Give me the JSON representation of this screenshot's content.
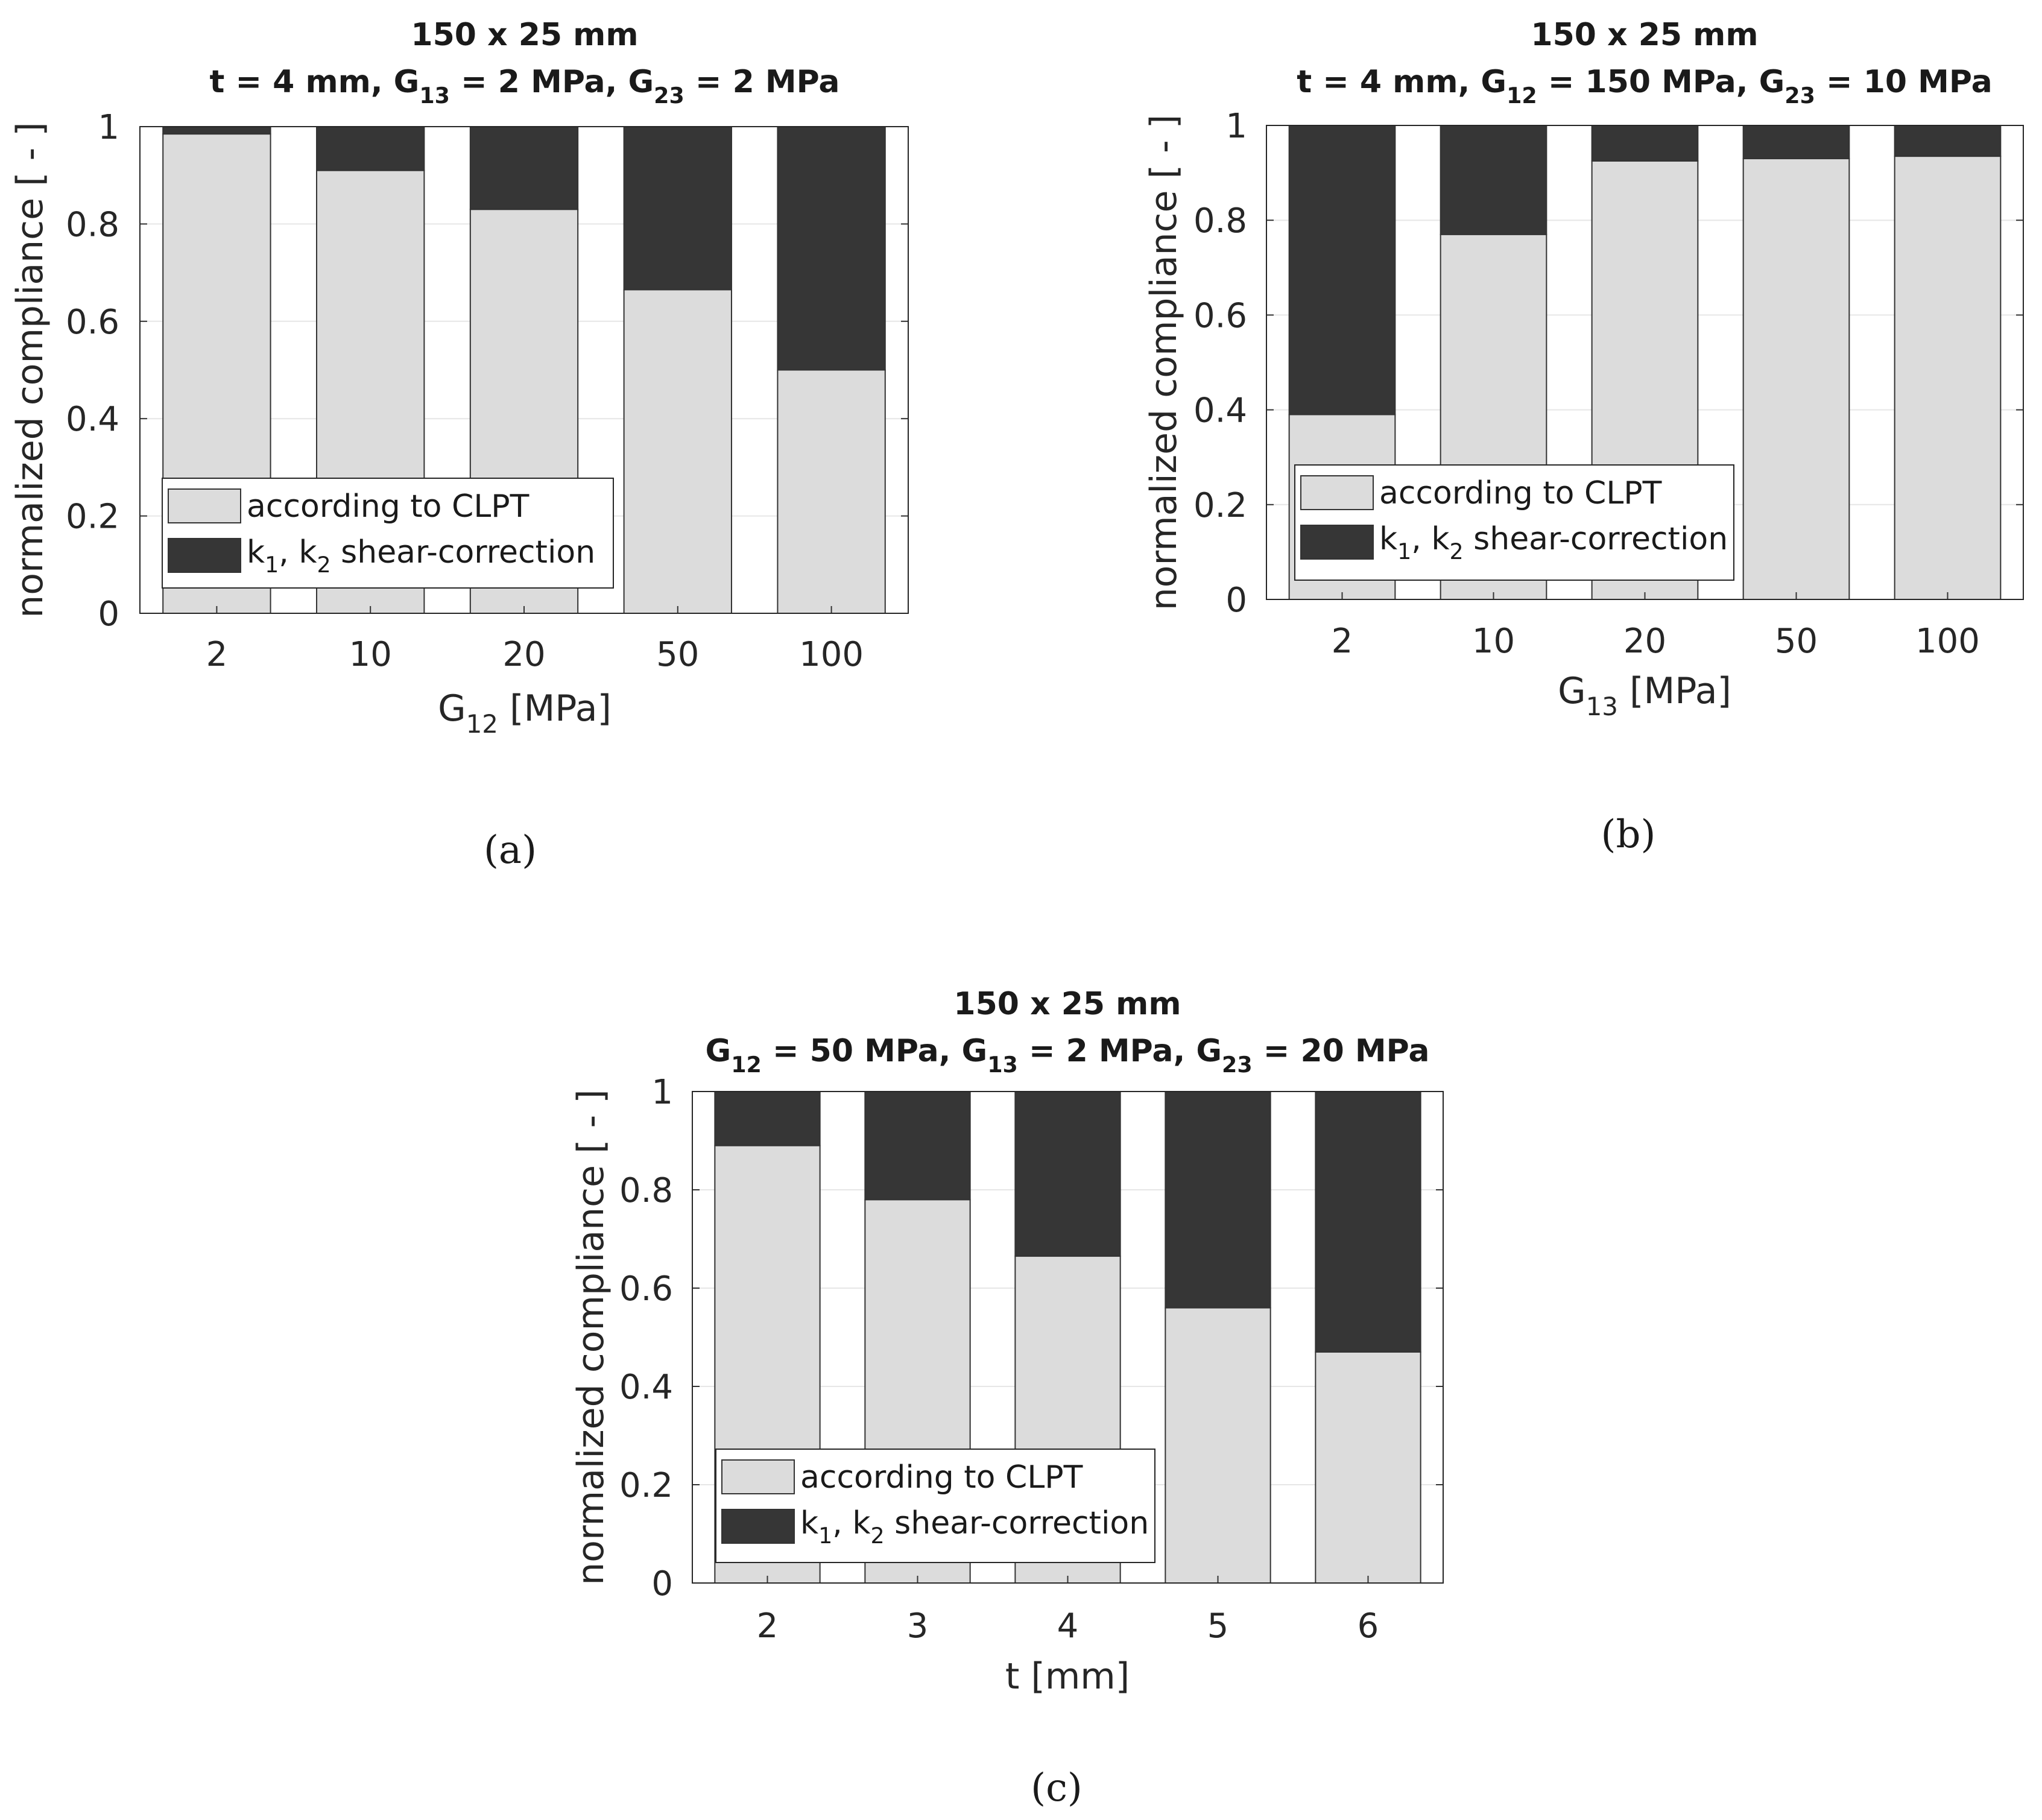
{
  "colors": {
    "clpt": "#dcdcdc",
    "shear": "#363636",
    "edge": "#333333",
    "grid": "#e6e6e6"
  },
  "chart_data": [
    {
      "type": "bar",
      "stacked": true,
      "caption": "(a)",
      "title_line1": "150 x 25 mm",
      "title_line2": [
        {
          "t": "t = 4 mm, G",
          "sub": false
        },
        {
          "t": "13",
          "sub": true
        },
        {
          "t": " = 2 MPa, G",
          "sub": false
        },
        {
          "t": "23",
          "sub": true
        },
        {
          "t": " = 2 MPa",
          "sub": false
        }
      ],
      "xlabel": [
        {
          "t": "G",
          "sub": false
        },
        {
          "t": "12",
          "sub": true
        },
        {
          "t": " [MPa]",
          "sub": false
        }
      ],
      "ylabel": "normalized compliance [ - ]",
      "categories": [
        "2",
        "10",
        "20",
        "50",
        "100"
      ],
      "series": [
        {
          "name": "according to CLPT",
          "values": [
            0.985,
            0.91,
            0.83,
            0.665,
            0.5
          ]
        },
        {
          "name": "k1, k2 shear-correction",
          "values": [
            0.015,
            0.09,
            0.17,
            0.335,
            0.5
          ]
        }
      ],
      "ylim": [
        0,
        1
      ],
      "yticks": [
        "0",
        "0.2",
        "0.4",
        "0.6",
        "0.8",
        "1"
      ],
      "legend_position": "bottom-left"
    },
    {
      "type": "bar",
      "stacked": true,
      "caption": "(b)",
      "title_line1": "150 x 25 mm",
      "title_line2": [
        {
          "t": "t = 4 mm, G",
          "sub": false
        },
        {
          "t": "12",
          "sub": true
        },
        {
          "t": " = 150 MPa, G",
          "sub": false
        },
        {
          "t": "23",
          "sub": true
        },
        {
          "t": " = 10 MPa",
          "sub": false
        }
      ],
      "xlabel": [
        {
          "t": "G",
          "sub": false
        },
        {
          "t": "13",
          "sub": true
        },
        {
          "t": " [MPa]",
          "sub": false
        }
      ],
      "ylabel": "normalized compliance [ - ]",
      "categories": [
        "2",
        "10",
        "20",
        "50",
        "100"
      ],
      "series": [
        {
          "name": "according to CLPT",
          "values": [
            0.39,
            0.77,
            0.925,
            0.93,
            0.935
          ]
        },
        {
          "name": "k1, k2 shear-correction",
          "values": [
            0.61,
            0.23,
            0.075,
            0.07,
            0.065
          ]
        }
      ],
      "ylim": [
        0,
        1
      ],
      "yticks": [
        "0",
        "0.2",
        "0.4",
        "0.6",
        "0.8",
        "1"
      ],
      "legend_position": "bottom-left"
    },
    {
      "type": "bar",
      "stacked": true,
      "caption": "(c)",
      "title_line1": "150 x 25 mm",
      "title_line2": [
        {
          "t": "G",
          "sub": false
        },
        {
          "t": "12",
          "sub": true
        },
        {
          "t": " = 50 MPa, G",
          "sub": false
        },
        {
          "t": "13",
          "sub": true
        },
        {
          "t": " = 2 MPa, G",
          "sub": false
        },
        {
          "t": "23",
          "sub": true
        },
        {
          "t": " = 20 MPa",
          "sub": false
        }
      ],
      "xlabel": [
        {
          "t": "t [mm]",
          "sub": false
        }
      ],
      "ylabel": "normalized compliance [ - ]",
      "categories": [
        "2",
        "3",
        "4",
        "5",
        "6"
      ],
      "series": [
        {
          "name": "according to CLPT",
          "values": [
            0.89,
            0.78,
            0.665,
            0.56,
            0.47
          ]
        },
        {
          "name": "k1, k2 shear-correction",
          "values": [
            0.11,
            0.22,
            0.335,
            0.44,
            0.53
          ]
        }
      ],
      "ylim": [
        0,
        1
      ],
      "yticks": [
        "0",
        "0.2",
        "0.4",
        "0.6",
        "0.8",
        "1"
      ],
      "legend_position": "bottom-left"
    }
  ],
  "legend": {
    "clpt_label": "according to CLPT",
    "shear_label": [
      {
        "t": "k",
        "sub": false
      },
      {
        "t": "1",
        "sub": true
      },
      {
        "t": ", k",
        "sub": false
      },
      {
        "t": "2",
        "sub": true
      },
      {
        "t": " shear-correction",
        "sub": false
      }
    ]
  }
}
